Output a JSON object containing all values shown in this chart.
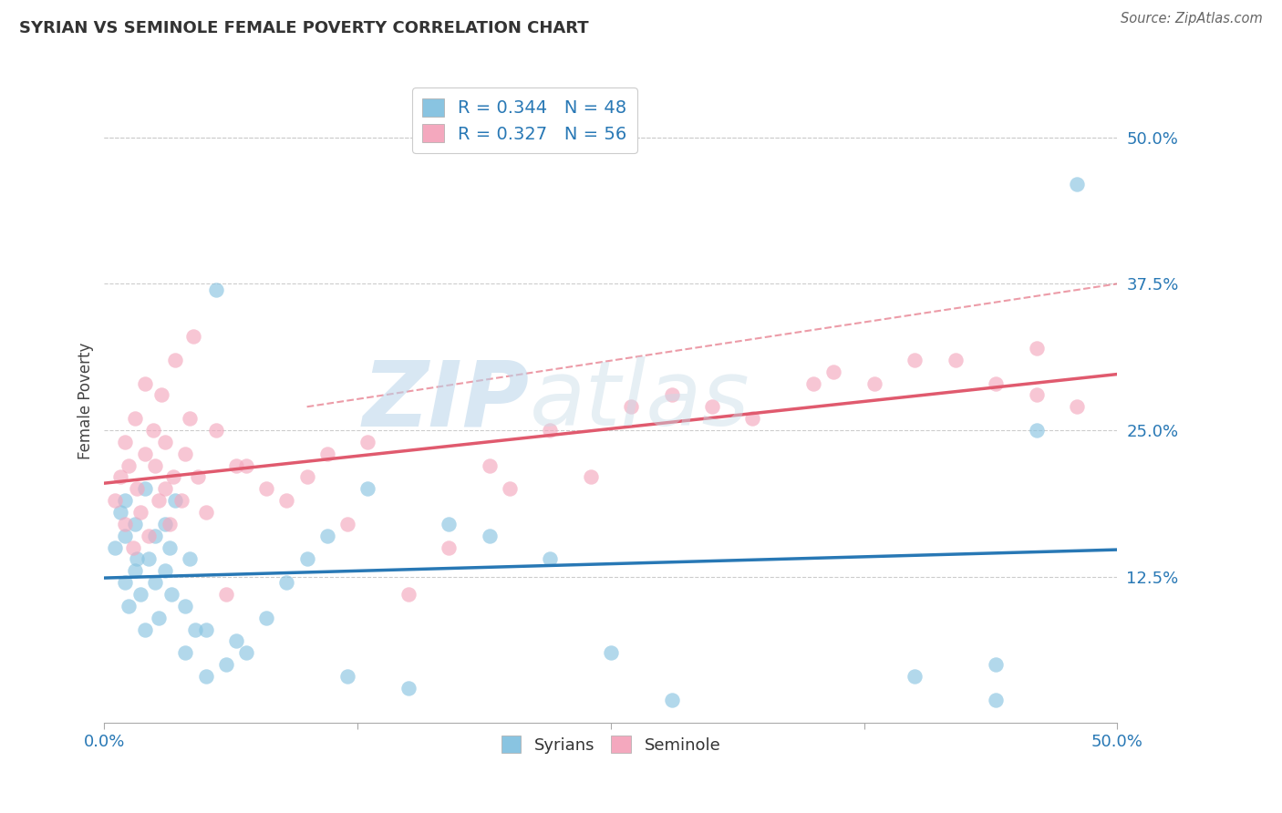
{
  "title": "SYRIAN VS SEMINOLE FEMALE POVERTY CORRELATION CHART",
  "source": "Source: ZipAtlas.com",
  "ylabel": "Female Poverty",
  "xlim": [
    0.0,
    0.5
  ],
  "ylim": [
    0.0,
    0.55
  ],
  "xtick_positions": [
    0.0,
    0.125,
    0.25,
    0.375,
    0.5
  ],
  "xticklabels": [
    "0.0%",
    "",
    "",
    "",
    "50.0%"
  ],
  "ytick_positions_right": [
    0.5,
    0.375,
    0.25,
    0.125
  ],
  "ytick_labels_right": [
    "50.0%",
    "37.5%",
    "25.0%",
    "12.5%"
  ],
  "grid_color": "#cccccc",
  "grid_linestyle": "--",
  "background_color": "#ffffff",
  "syrians_color": "#89c4e1",
  "seminole_color": "#f4a8be",
  "syrians_line_color": "#2878b5",
  "seminole_line_color": "#e05a6e",
  "R_syrians": 0.344,
  "N_syrians": 48,
  "R_seminole": 0.327,
  "N_seminole": 56,
  "syrians_x": [
    0.005,
    0.008,
    0.01,
    0.01,
    0.01,
    0.012,
    0.015,
    0.015,
    0.016,
    0.018,
    0.02,
    0.02,
    0.022,
    0.025,
    0.025,
    0.027,
    0.03,
    0.03,
    0.032,
    0.033,
    0.035,
    0.04,
    0.04,
    0.042,
    0.045,
    0.05,
    0.05,
    0.055,
    0.06,
    0.065,
    0.07,
    0.08,
    0.09,
    0.1,
    0.11,
    0.12,
    0.13,
    0.15,
    0.17,
    0.19,
    0.22,
    0.25,
    0.28,
    0.4,
    0.44,
    0.44,
    0.46,
    0.48
  ],
  "syrians_y": [
    0.15,
    0.18,
    0.12,
    0.16,
    0.19,
    0.1,
    0.13,
    0.17,
    0.14,
    0.11,
    0.08,
    0.2,
    0.14,
    0.16,
    0.12,
    0.09,
    0.13,
    0.17,
    0.15,
    0.11,
    0.19,
    0.06,
    0.1,
    0.14,
    0.08,
    0.04,
    0.08,
    0.37,
    0.05,
    0.07,
    0.06,
    0.09,
    0.12,
    0.14,
    0.16,
    0.04,
    0.2,
    0.03,
    0.17,
    0.16,
    0.14,
    0.06,
    0.02,
    0.04,
    0.02,
    0.05,
    0.25,
    0.46
  ],
  "seminole_x": [
    0.005,
    0.008,
    0.01,
    0.01,
    0.012,
    0.014,
    0.015,
    0.016,
    0.018,
    0.02,
    0.02,
    0.022,
    0.024,
    0.025,
    0.027,
    0.028,
    0.03,
    0.03,
    0.032,
    0.034,
    0.035,
    0.038,
    0.04,
    0.042,
    0.044,
    0.046,
    0.05,
    0.055,
    0.06,
    0.065,
    0.07,
    0.08,
    0.09,
    0.1,
    0.11,
    0.12,
    0.13,
    0.15,
    0.17,
    0.19,
    0.2,
    0.22,
    0.24,
    0.26,
    0.28,
    0.3,
    0.32,
    0.35,
    0.36,
    0.38,
    0.4,
    0.42,
    0.44,
    0.46,
    0.46,
    0.48
  ],
  "seminole_y": [
    0.19,
    0.21,
    0.24,
    0.17,
    0.22,
    0.15,
    0.26,
    0.2,
    0.18,
    0.23,
    0.29,
    0.16,
    0.25,
    0.22,
    0.19,
    0.28,
    0.2,
    0.24,
    0.17,
    0.21,
    0.31,
    0.19,
    0.23,
    0.26,
    0.33,
    0.21,
    0.18,
    0.25,
    0.11,
    0.22,
    0.22,
    0.2,
    0.19,
    0.21,
    0.23,
    0.17,
    0.24,
    0.11,
    0.15,
    0.22,
    0.2,
    0.25,
    0.21,
    0.27,
    0.28,
    0.27,
    0.26,
    0.29,
    0.3,
    0.29,
    0.31,
    0.31,
    0.29,
    0.32,
    0.28,
    0.27
  ],
  "watermark_zip": "ZIP",
  "watermark_atlas": "atlas",
  "syrians_label": "Syrians",
  "seminole_label": "Seminole"
}
